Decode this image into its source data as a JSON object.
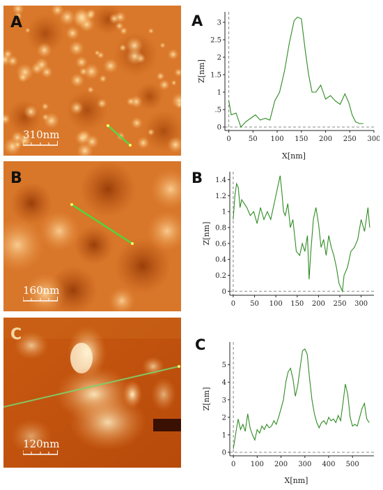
{
  "panels": [
    {
      "letter": "A",
      "scale_label": "310nm",
      "profile_line_color": "#5fd04a"
    },
    {
      "letter": "B",
      "scale_label": "160nm",
      "profile_line_color": "#4fd83a"
    },
    {
      "letter": "C",
      "scale_label": "120nm",
      "profile_line_color": "#7fd06a"
    }
  ],
  "chart_data": [
    {
      "type": "line",
      "panel_label": "A",
      "xlabel": "X[nm]",
      "ylabel": "Z[nm]",
      "xlim": [
        -8,
        300
      ],
      "ylim": [
        -0.1,
        3.3
      ],
      "xticks": [
        0,
        50,
        100,
        150,
        200,
        250,
        300
      ],
      "yticks": [
        0,
        0.5,
        1,
        1.5,
        2,
        2.5,
        3
      ],
      "ytick_labels": [
        "0",
        ".5",
        "1",
        "1.5",
        "2",
        "2.5",
        "3"
      ],
      "color": "#2e8b22",
      "series": [
        {
          "x": [
            0,
            5,
            15,
            25,
            35,
            45,
            55,
            65,
            75,
            85,
            95,
            105,
            115,
            125,
            135,
            142,
            150,
            158,
            165,
            172,
            180,
            190,
            200,
            210,
            220,
            230,
            240,
            248,
            255,
            262,
            270,
            278
          ],
          "y": [
            0.75,
            0.35,
            0.4,
            0.0,
            0.15,
            0.25,
            0.35,
            0.2,
            0.25,
            0.2,
            0.75,
            1.0,
            1.6,
            2.4,
            3.05,
            3.15,
            3.1,
            2.2,
            1.5,
            1.0,
            1.0,
            1.2,
            0.8,
            0.9,
            0.75,
            0.65,
            0.95,
            0.7,
            0.35,
            0.15,
            0.1,
            0.1
          ]
        }
      ]
    },
    {
      "type": "line",
      "panel_label": "B",
      "xlabel": "",
      "ylabel": "Z[nm]",
      "xlim": [
        -8,
        330
      ],
      "ylim": [
        -0.05,
        1.5
      ],
      "xticks": [
        0,
        50,
        100,
        150,
        200,
        250,
        300
      ],
      "yticks": [
        0,
        0.2,
        0.4,
        0.6,
        0.8,
        1,
        1.2,
        1.4
      ],
      "ytick_labels": [
        "0",
        "0.2",
        "0.4",
        "0.6",
        "0.8",
        "1",
        "1.2",
        "1.4"
      ],
      "color": "#2e8b22",
      "series": [
        {
          "x": [
            0,
            4,
            8,
            12,
            16,
            20,
            26,
            32,
            40,
            48,
            56,
            64,
            72,
            80,
            88,
            96,
            104,
            110,
            114,
            118,
            122,
            128,
            134,
            140,
            148,
            156,
            162,
            168,
            174,
            178,
            182,
            188,
            194,
            200,
            206,
            212,
            218,
            224,
            230,
            236,
            242,
            248,
            252,
            256,
            260,
            268,
            276,
            284,
            292,
            300,
            308,
            316,
            320
          ],
          "y": [
            0.9,
            1.2,
            1.35,
            1.3,
            1.05,
            1.15,
            1.1,
            1.05,
            0.95,
            1.0,
            0.85,
            1.05,
            0.9,
            1.0,
            0.9,
            1.1,
            1.3,
            1.45,
            1.25,
            1.0,
            0.95,
            1.1,
            0.8,
            0.9,
            0.5,
            0.45,
            0.6,
            0.5,
            0.7,
            0.15,
            0.5,
            0.9,
            1.05,
            0.85,
            0.55,
            0.65,
            0.45,
            0.7,
            0.55,
            0.45,
            0.3,
            0.1,
            0.05,
            0.0,
            0.2,
            0.3,
            0.5,
            0.55,
            0.65,
            0.9,
            0.75,
            1.05,
            0.8
          ]
        }
      ]
    },
    {
      "type": "line",
      "panel_label": "C",
      "xlabel": "X[nm]",
      "ylabel": "Z[nm]",
      "xlim": [
        -15,
        590
      ],
      "ylim": [
        -0.2,
        6.3
      ],
      "xticks": [
        0,
        100,
        200,
        300,
        400,
        500
      ],
      "yticks": [
        0,
        1,
        2,
        3,
        4,
        5
      ],
      "ytick_labels": [
        "0",
        "1",
        "2",
        "3",
        "4",
        "5"
      ],
      "color": "#2e8b22",
      "series": [
        {
          "x": [
            0,
            10,
            20,
            30,
            40,
            50,
            60,
            70,
            80,
            90,
            100,
            110,
            120,
            130,
            140,
            150,
            160,
            170,
            180,
            190,
            200,
            210,
            220,
            230,
            240,
            250,
            260,
            270,
            280,
            290,
            300,
            310,
            320,
            330,
            340,
            350,
            360,
            370,
            380,
            390,
            400,
            410,
            420,
            430,
            440,
            450,
            460,
            470,
            480,
            490,
            500,
            510,
            520,
            530,
            540,
            550,
            560,
            570
          ],
          "y": [
            0.2,
            1.1,
            1.9,
            1.3,
            1.6,
            1.2,
            2.2,
            1.4,
            1.0,
            0.7,
            1.3,
            1.1,
            1.5,
            1.3,
            1.6,
            1.4,
            1.5,
            1.8,
            1.6,
            2.0,
            2.5,
            3.0,
            4.0,
            4.6,
            4.8,
            4.2,
            3.2,
            3.8,
            4.8,
            5.8,
            5.9,
            5.6,
            4.2,
            3.0,
            2.2,
            1.7,
            1.4,
            1.7,
            1.8,
            1.6,
            2.0,
            1.8,
            1.9,
            1.7,
            2.1,
            1.8,
            2.8,
            3.9,
            3.3,
            2.0,
            1.5,
            1.6,
            1.5,
            2.0,
            2.5,
            2.8,
            1.9,
            1.7
          ]
        }
      ]
    }
  ]
}
